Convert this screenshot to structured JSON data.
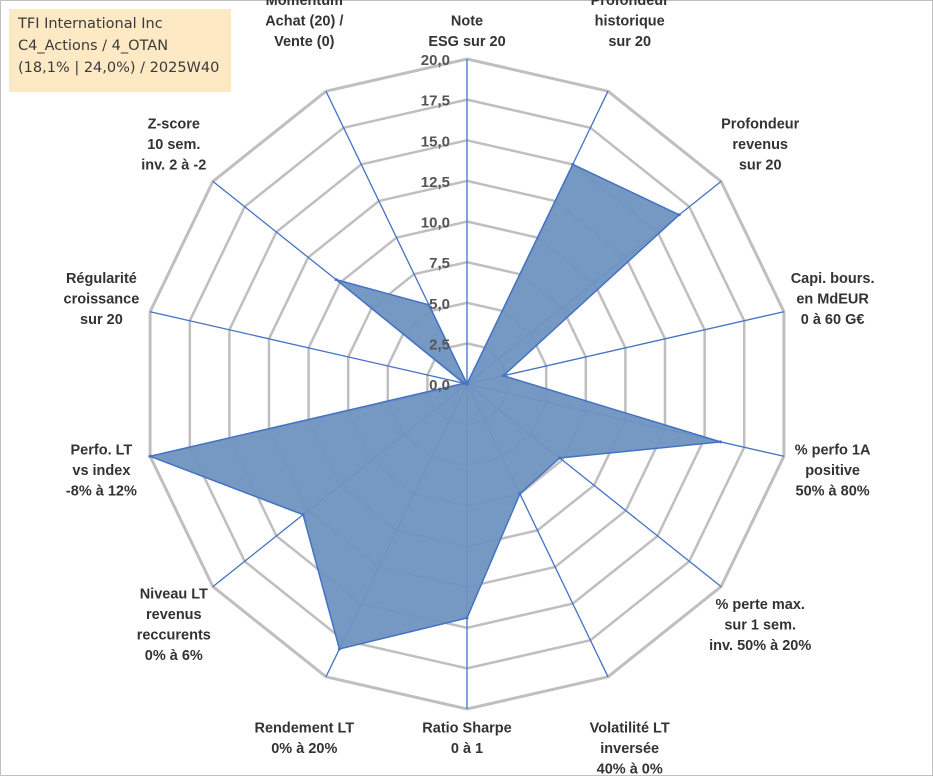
{
  "title_box": {
    "line1": "TFI International Inc",
    "line2": "C4_Actions / 4_OTAN",
    "line3": "(18,1% | 24,0%) / 2025W40"
  },
  "colors": {
    "fill": "#6f93c0",
    "stroke": "#4472c4",
    "grid": "#bfbfbf",
    "spoke": "#4472c4"
  },
  "chart_data": {
    "type": "radar",
    "title": "",
    "rmin": 0,
    "rmax": 20,
    "ticks": [
      "0,0",
      "2,5",
      "5,0",
      "7,5",
      "10,0",
      "12,5",
      "15,0",
      "17,5",
      "20,0"
    ],
    "axes": [
      {
        "lines": [
          "Note",
          "ESG sur 20"
        ]
      },
      {
        "lines": [
          "Profondeur",
          "historique",
          "sur 20"
        ]
      },
      {
        "lines": [
          "Profondeur",
          "revenus",
          "sur 20"
        ]
      },
      {
        "lines": [
          "Capi. bours.",
          "en MdEUR",
          "0 à 60 G€"
        ]
      },
      {
        "lines": [
          "% perfo 1A",
          "positive",
          "50% à 80%"
        ]
      },
      {
        "lines": [
          "% perte max.",
          "sur 1 sem.",
          "inv. 50% à 20%"
        ]
      },
      {
        "lines": [
          "Volatilité LT",
          "inversée",
          "40% à 0%"
        ]
      },
      {
        "lines": [
          "Ratio Sharpe",
          "0 à 1"
        ]
      },
      {
        "lines": [
          "Rendement LT",
          "0% à 20%"
        ]
      },
      {
        "lines": [
          "Niveau LT",
          "revenus",
          "reccurents",
          "0% à 6%"
        ]
      },
      {
        "lines": [
          "Perfo. LT",
          "vs index",
          "-8% à 12%"
        ]
      },
      {
        "lines": [
          "Régularité",
          "croissance",
          "sur 20"
        ]
      },
      {
        "lines": [
          "Z-score",
          "10 sem.",
          "inv. 2 à -2"
        ]
      },
      {
        "lines": [
          "Momentum",
          "Achat (20) /",
          "Vente (0)"
        ]
      }
    ],
    "series": [
      {
        "name": "TFI International Inc",
        "values": [
          0,
          15.0,
          16.7,
          2.3,
          16.0,
          7.3,
          7.5,
          14.4,
          18.1,
          12.9,
          20.0,
          0.2,
          10.3,
          5.4
        ]
      }
    ]
  }
}
